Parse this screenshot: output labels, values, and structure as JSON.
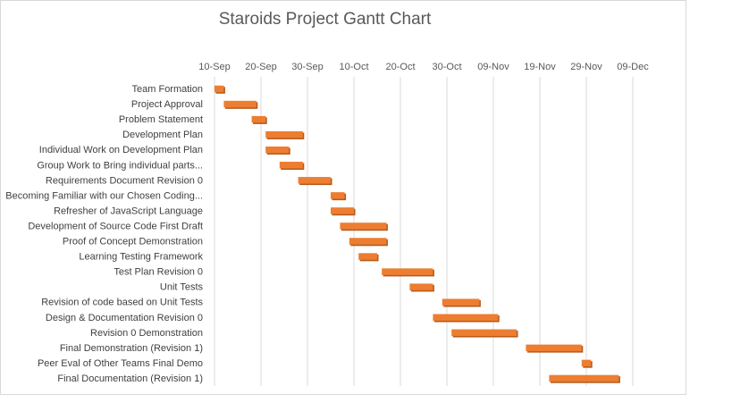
{
  "chart_data": {
    "type": "bar",
    "orientation": "horizontal-gantt",
    "title": "Staroids Project Gantt Chart",
    "x_axis_position": "top",
    "grid": true,
    "legend": "none",
    "bar_color": "#ED7D31",
    "bar_shadow_color": "#B45A1B",
    "x_ticks": [
      "10-Sep",
      "20-Sep",
      "30-Sep",
      "10-Oct",
      "20-Oct",
      "30-Oct",
      "09-Nov",
      "19-Nov",
      "29-Nov",
      "09-Dec"
    ],
    "tasks": [
      {
        "label": "Team Formation",
        "start": "10-Sep",
        "end": "12-Sep"
      },
      {
        "label": "Project Approval",
        "start": "12-Sep",
        "end": "19-Sep"
      },
      {
        "label": "Problem Statement ",
        "start": "18-Sep",
        "end": "21-Sep"
      },
      {
        "label": "Development Plan ",
        "start": "21-Sep",
        "end": "29-Sep"
      },
      {
        "label": "Individual Work on Development Plan",
        "start": "21-Sep",
        "end": "26-Sep"
      },
      {
        "label": "Group Work to Bring individual parts...",
        "start": "24-Sep",
        "end": "29-Sep"
      },
      {
        "label": "Requirements Document Revision 0",
        "start": "28-Sep",
        "end": "05-Oct"
      },
      {
        "label": "Becoming Familiar with our  Chosen Coding...",
        "start": "05-Oct",
        "end": "08-Oct"
      },
      {
        "label": "Refresher of JavaScript Language",
        "start": "05-Oct",
        "end": "10-Oct"
      },
      {
        "label": "Development of Source Code First Draft",
        "start": "07-Oct",
        "end": "17-Oct"
      },
      {
        "label": "Proof of Concept Demonstration",
        "start": "09-Oct",
        "end": "17-Oct"
      },
      {
        "label": "Learning Testing Framework",
        "start": "11-Oct",
        "end": "15-Oct"
      },
      {
        "label": "Test Plan Revision 0",
        "start": "16-Oct",
        "end": "27-Oct"
      },
      {
        "label": "Unit Tests",
        "start": "22-Oct",
        "end": "27-Oct"
      },
      {
        "label": "Revision of code based on Unit Tests",
        "start": "29-Oct",
        "end": "06-Nov"
      },
      {
        "label": "Design & Documentation Revision 0",
        "start": "27-Oct",
        "end": "10-Nov"
      },
      {
        "label": "Revision 0 Demonstration",
        "start": "31-Oct",
        "end": "14-Nov"
      },
      {
        "label": "Final Demonstration (Revision 1)",
        "start": "16-Nov",
        "end": "28-Nov"
      },
      {
        "label": "Peer Eval of Other Teams Final Demo",
        "start": "28-Nov",
        "end": "30-Nov"
      },
      {
        "label": "Final Documentation (Revision 1)",
        "start": "21-Nov",
        "end": "06-Dec"
      }
    ]
  }
}
